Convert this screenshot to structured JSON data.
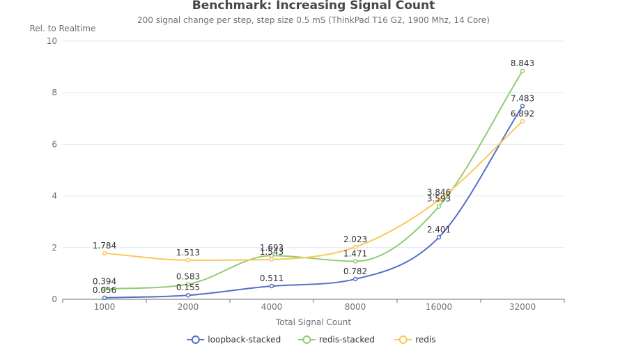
{
  "chart_data": {
    "type": "line",
    "title": "Benchmark: Increasing Signal Count",
    "subtitle": "200 signal change per step, step size 0.5 mS (ThinkPad T16 G2, 1900 Mhz, 14 Core)",
    "xlabel": "Total Signal Count",
    "ylabel": "Rel. to Realtime",
    "categories": [
      "1000",
      "2000",
      "4000",
      "8000",
      "16000",
      "32000"
    ],
    "ylim": [
      0,
      10
    ],
    "yticks": [
      0,
      2,
      4,
      6,
      8,
      10
    ],
    "grid": true,
    "legend_position": "bottom",
    "smooth": true,
    "series": [
      {
        "name": "loopback-stacked",
        "color": "#5470c6",
        "values": [
          0.056,
          0.155,
          0.511,
          0.782,
          2.401,
          7.483
        ]
      },
      {
        "name": "redis-stacked",
        "color": "#91cc75",
        "values": [
          0.394,
          0.583,
          1.693,
          1.471,
          3.593,
          8.843
        ]
      },
      {
        "name": "redis",
        "color": "#fac858",
        "values": [
          1.784,
          1.513,
          1.543,
          2.023,
          3.846,
          6.892
        ]
      }
    ]
  }
}
